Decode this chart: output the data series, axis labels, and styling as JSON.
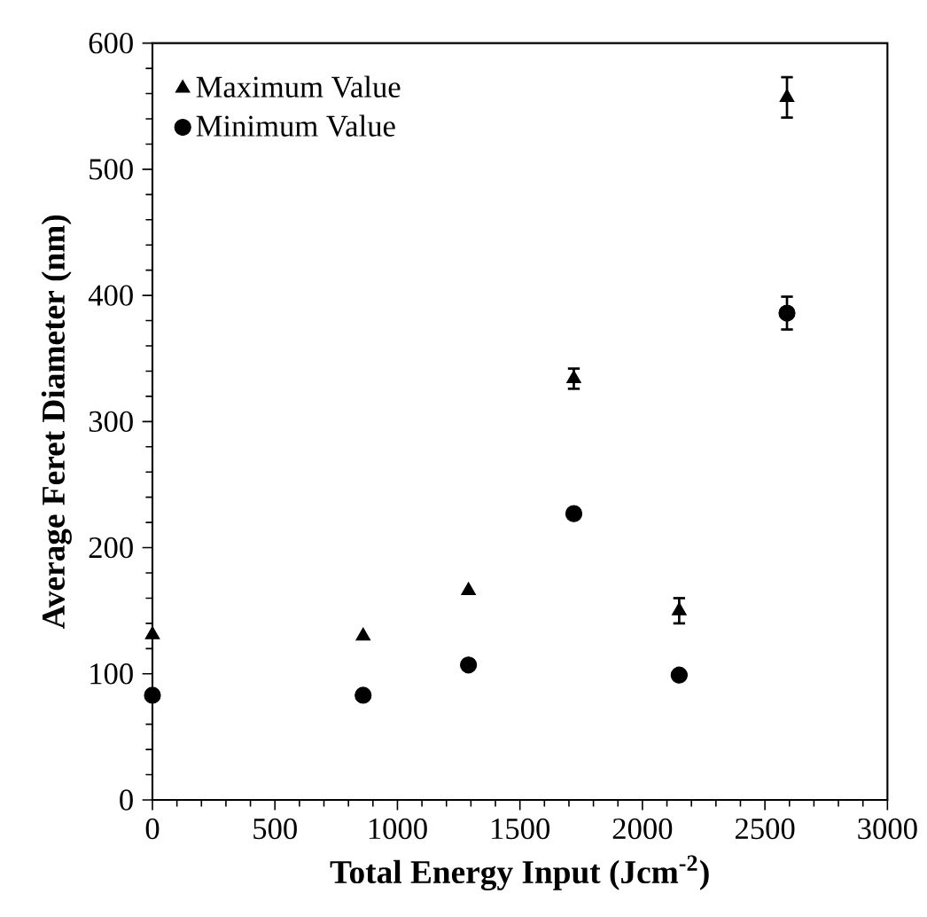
{
  "chart_data": {
    "type": "scatter",
    "xlabel": "Total Energy Input (Jcm$^{-2}$)",
    "ylabel": "Average Feret Diameter (nm)",
    "xlim": [
      0,
      3000
    ],
    "xticks": [
      0,
      500,
      1000,
      1500,
      2000,
      2500,
      3000
    ],
    "ylim": [
      0,
      600
    ],
    "yticks": [
      0,
      100,
      200,
      300,
      400,
      500,
      600
    ],
    "grid": false,
    "legend": "top left",
    "series": [
      {
        "name": "Maximum Value",
        "color": "#000000",
        "marker": "triangle",
        "x": [
          0,
          860,
          1290,
          1720,
          2150,
          2590
        ],
        "values": [
          131,
          130,
          166,
          334,
          150,
          557
        ],
        "errors": [
          null,
          null,
          null,
          8,
          10,
          16
        ]
      },
      {
        "name": "Minimum Value",
        "color": "#000000",
        "marker": "circle",
        "x": [
          0,
          860,
          1290,
          1720,
          2150,
          2590
        ],
        "values": [
          83,
          83,
          107,
          227,
          99,
          386
        ],
        "errors": [
          null,
          null,
          null,
          null,
          null,
          13
        ]
      }
    ]
  }
}
